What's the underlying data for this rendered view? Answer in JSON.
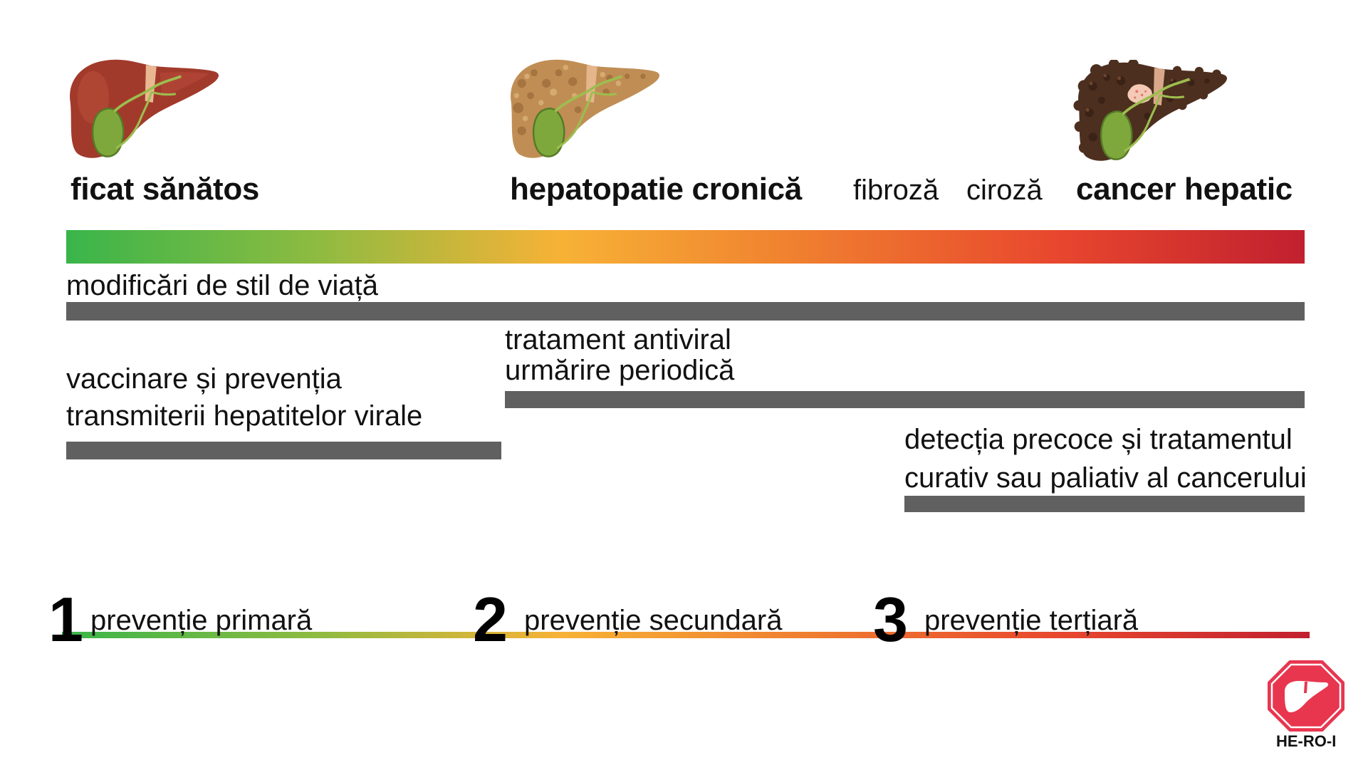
{
  "stages": [
    {
      "label": "ficat sănătos",
      "icon": "healthy-liver-icon"
    },
    {
      "label": "hepatopatie cronică",
      "icon": "chronic-liver-disease-icon"
    },
    {
      "label": "fibroză"
    },
    {
      "label": "ciroză"
    },
    {
      "label": "cancer hepatic",
      "icon": "liver-cancer-icon"
    }
  ],
  "interventions": {
    "lifestyle": {
      "lines": [
        "modificări de stil de viață"
      ]
    },
    "vaccination": {
      "lines": [
        "vaccinare și prevenția",
        "transmiterii hepatitelor virale"
      ]
    },
    "antiviral": {
      "lines": [
        "tratament antiviral",
        "urmărire periodică"
      ]
    },
    "cancer_care": {
      "lines": [
        "detecția precoce și tratamentul",
        "curativ sau paliativ al cancerului"
      ]
    }
  },
  "prevention_levels": [
    {
      "number": "1",
      "label": "prevenție primară"
    },
    {
      "number": "2",
      "label": "prevenție secundară"
    },
    {
      "number": "3",
      "label": "prevenție terțiară"
    }
  ],
  "logo": {
    "text": "HE-RO-I",
    "icon": "liver-logo-icon"
  },
  "colors": {
    "progression_gradient": [
      "#39b54a",
      "#8dbb41",
      "#f7b236",
      "#ef7d2f",
      "#e8472e",
      "#c1202f"
    ],
    "intervention_bar": "#606060",
    "logo_red": "#e8364f",
    "text": "#111111"
  }
}
